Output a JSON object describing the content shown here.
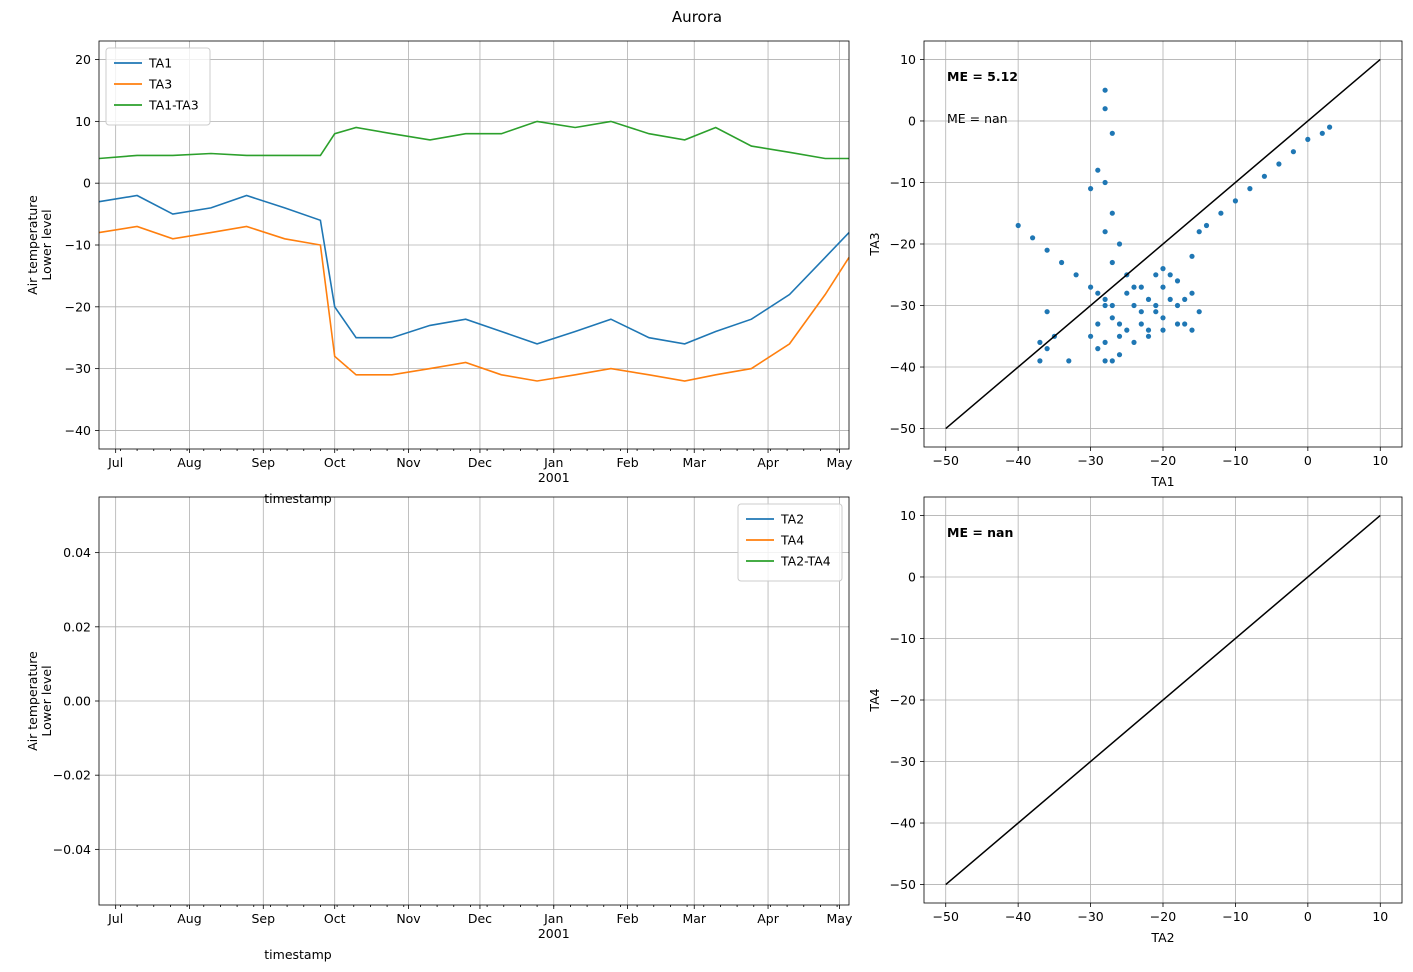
{
  "figure": {
    "title": "Aurora"
  },
  "colors": {
    "blue": "#1f77b4",
    "orange": "#ff7f0e",
    "green": "#2ca02c",
    "black": "#000000",
    "grid": "#b0b0b0"
  },
  "chart_data": [
    {
      "id": "ts_upper",
      "type": "line",
      "xlabel": "timestamp",
      "ylabel": [
        "Air temperature",
        "Lower level"
      ],
      "xlim": [
        "2000-06-24",
        "2001-05-05"
      ],
      "ylim": [
        -43,
        23
      ],
      "yticks": [
        20,
        10,
        0,
        -10,
        -20,
        -30,
        -40
      ],
      "xticks": [
        {
          "date": "2000-07-01",
          "label": "Jul"
        },
        {
          "date": "2000-08-01",
          "label": "Aug"
        },
        {
          "date": "2000-09-01",
          "label": "Sep"
        },
        {
          "date": "2000-10-01",
          "label": "Oct"
        },
        {
          "date": "2000-11-01",
          "label": "Nov"
        },
        {
          "date": "2000-12-01",
          "label": "Dec"
        },
        {
          "date": "2001-01-01",
          "label": "Jan",
          "sublabel": "2001"
        },
        {
          "date": "2001-02-01",
          "label": "Feb"
        },
        {
          "date": "2001-03-01",
          "label": "Mar"
        },
        {
          "date": "2001-04-01",
          "label": "Apr"
        },
        {
          "date": "2001-05-01",
          "label": "May"
        }
      ],
      "grid": true,
      "legend": "upper left",
      "series": [
        {
          "name": "TA1",
          "color": "#1f77b4",
          "x": [
            "2000-06-24",
            "2000-07-10",
            "2000-07-25",
            "2000-08-10",
            "2000-08-25",
            "2000-09-10",
            "2000-09-25",
            "2000-10-01",
            "2000-10-10",
            "2000-10-25",
            "2000-11-10",
            "2000-11-25",
            "2000-12-10",
            "2000-12-25",
            "2001-01-10",
            "2001-01-25",
            "2001-02-10",
            "2001-02-25",
            "2001-03-10",
            "2001-03-25",
            "2001-04-10",
            "2001-04-25",
            "2001-05-05"
          ],
          "values": [
            -3,
            -2,
            -5,
            -4,
            -2,
            -4,
            -6,
            -20,
            -25,
            -25,
            -23,
            -22,
            -24,
            -26,
            -24,
            -22,
            -25,
            -26,
            -24,
            -22,
            -18,
            -12,
            -8
          ]
        },
        {
          "name": "TA3",
          "color": "#ff7f0e",
          "x": [
            "2000-06-24",
            "2000-07-10",
            "2000-07-25",
            "2000-08-10",
            "2000-08-25",
            "2000-09-10",
            "2000-09-25",
            "2000-10-01",
            "2000-10-10",
            "2000-10-25",
            "2000-11-10",
            "2000-11-25",
            "2000-12-10",
            "2000-12-25",
            "2001-01-10",
            "2001-01-25",
            "2001-02-10",
            "2001-02-25",
            "2001-03-10",
            "2001-03-25",
            "2001-04-10",
            "2001-04-25",
            "2001-05-05"
          ],
          "values": [
            -8,
            -7,
            -9,
            -8,
            -7,
            -9,
            -10,
            -28,
            -31,
            -31,
            -30,
            -29,
            -31,
            -32,
            -31,
            -30,
            -31,
            -32,
            -31,
            -30,
            -26,
            -18,
            -12
          ]
        },
        {
          "name": "TA1-TA3",
          "color": "#2ca02c",
          "x": [
            "2000-06-24",
            "2000-07-10",
            "2000-07-25",
            "2000-08-10",
            "2000-08-25",
            "2000-09-10",
            "2000-09-25",
            "2000-10-01",
            "2000-10-10",
            "2000-10-25",
            "2000-11-10",
            "2000-11-25",
            "2000-12-10",
            "2000-12-25",
            "2001-01-10",
            "2001-01-25",
            "2001-02-10",
            "2001-02-25",
            "2001-03-10",
            "2001-03-25",
            "2001-04-10",
            "2001-04-25",
            "2001-05-05"
          ],
          "values": [
            4,
            4.5,
            4.5,
            4.8,
            4.5,
            4.5,
            4.5,
            8,
            9,
            8,
            7,
            8,
            8,
            10,
            9,
            10,
            8,
            7,
            9,
            6,
            5,
            4,
            4
          ]
        }
      ]
    },
    {
      "id": "scatter_upper",
      "type": "scatter",
      "xlabel": "TA1",
      "ylabel": "TA3",
      "xlim": [
        -53,
        13
      ],
      "ylim": [
        -53,
        13
      ],
      "xticks": [
        -50,
        -40,
        -30,
        -20,
        -10,
        0,
        10
      ],
      "yticks": [
        10,
        0,
        -10,
        -20,
        -30,
        -40,
        -50
      ],
      "grid": true,
      "annotations": [
        {
          "text": "ME = 5.12",
          "bold": true
        },
        {
          "text": "ME = nan",
          "bold": false
        }
      ],
      "reference_line": {
        "x": [
          -50,
          10
        ],
        "y": [
          -50,
          10
        ],
        "color": "#000000"
      },
      "points_color": "#1f77b4",
      "points": [
        [
          -40,
          -17
        ],
        [
          -38,
          -19
        ],
        [
          -36,
          -21
        ],
        [
          -34,
          -23
        ],
        [
          -32,
          -25
        ],
        [
          -30,
          -27
        ],
        [
          -29,
          -28
        ],
        [
          -28,
          -29
        ],
        [
          -27,
          -30
        ],
        [
          -36,
          -31
        ],
        [
          -35,
          -35
        ],
        [
          -36,
          -37
        ],
        [
          -28,
          -30
        ],
        [
          -27,
          -32
        ],
        [
          -26,
          -35
        ],
        [
          -26,
          -38
        ],
        [
          -28,
          -36
        ],
        [
          -28,
          -39
        ],
        [
          -27,
          -39
        ],
        [
          -26,
          -33
        ],
        [
          -25,
          -28
        ],
        [
          -24,
          -30
        ],
        [
          -23,
          -33
        ],
        [
          -22,
          -35
        ],
        [
          -21,
          -30
        ],
        [
          -20,
          -27
        ],
        [
          -20,
          -32
        ],
        [
          -19,
          -25
        ],
        [
          -18,
          -30
        ],
        [
          -17,
          -33
        ],
        [
          -16,
          -28
        ],
        [
          -16,
          -22
        ],
        [
          -15,
          -18
        ],
        [
          -14,
          -17
        ],
        [
          -12,
          -15
        ],
        [
          -10,
          -13
        ],
        [
          -8,
          -11
        ],
        [
          -6,
          -9
        ],
        [
          -4,
          -7
        ],
        [
          -2,
          -5
        ],
        [
          0,
          -3
        ],
        [
          2,
          -2
        ],
        [
          3,
          -1
        ],
        [
          -27,
          -2
        ],
        [
          -28,
          -10
        ],
        [
          -27,
          -15
        ],
        [
          -26,
          -20
        ],
        [
          -27,
          -23
        ],
        [
          -28,
          2
        ],
        [
          -28,
          5
        ],
        [
          -29,
          -8
        ],
        [
          -30,
          -11
        ],
        [
          -28,
          -18
        ],
        [
          -25,
          -25
        ],
        [
          -24,
          -27
        ],
        [
          -22,
          -29
        ],
        [
          -21,
          -31
        ],
        [
          -19,
          -29
        ],
        [
          -18,
          -26
        ],
        [
          -17,
          -29
        ],
        [
          -22,
          -34
        ],
        [
          -23,
          -31
        ],
        [
          -25,
          -34
        ],
        [
          -24,
          -36
        ],
        [
          -29,
          -33
        ],
        [
          -30,
          -35
        ],
        [
          -29,
          -37
        ],
        [
          -37,
          -36
        ],
        [
          -37,
          -39
        ],
        [
          -33,
          -39
        ],
        [
          -20,
          -34
        ],
        [
          -18,
          -33
        ],
        [
          -16,
          -34
        ],
        [
          -15,
          -31
        ],
        [
          -23,
          -27
        ],
        [
          -21,
          -25
        ],
        [
          -20,
          -24
        ]
      ]
    },
    {
      "id": "ts_lower",
      "type": "line",
      "xlabel": "timestamp",
      "ylabel": [
        "Air temperature",
        "Lower level"
      ],
      "xlim": [
        "2000-06-24",
        "2001-05-05"
      ],
      "ylim": [
        -0.055,
        0.055
      ],
      "yticks": [
        "0.04",
        "0.02",
        "0.00",
        "−0.02",
        "−0.04"
      ],
      "ytick_values": [
        0.04,
        0.02,
        0.0,
        -0.02,
        -0.04
      ],
      "xticks": [
        {
          "date": "2000-07-01",
          "label": "Jul"
        },
        {
          "date": "2000-08-01",
          "label": "Aug"
        },
        {
          "date": "2000-09-01",
          "label": "Sep"
        },
        {
          "date": "2000-10-01",
          "label": "Oct"
        },
        {
          "date": "2000-11-01",
          "label": "Nov"
        },
        {
          "date": "2000-12-01",
          "label": "Dec"
        },
        {
          "date": "2001-01-01",
          "label": "Jan",
          "sublabel": "2001"
        },
        {
          "date": "2001-02-01",
          "label": "Feb"
        },
        {
          "date": "2001-03-01",
          "label": "Mar"
        },
        {
          "date": "2001-04-01",
          "label": "Apr"
        },
        {
          "date": "2001-05-01",
          "label": "May"
        }
      ],
      "grid": true,
      "legend": "upper right",
      "series": [
        {
          "name": "TA2",
          "color": "#1f77b4",
          "x": [],
          "values": []
        },
        {
          "name": "TA4",
          "color": "#ff7f0e",
          "x": [],
          "values": []
        },
        {
          "name": "TA2-TA4",
          "color": "#2ca02c",
          "x": [],
          "values": []
        }
      ]
    },
    {
      "id": "scatter_lower",
      "type": "scatter",
      "xlabel": "TA2",
      "ylabel": "TA4",
      "xlim": [
        -53,
        13
      ],
      "ylim": [
        -53,
        13
      ],
      "xticks": [
        -50,
        -40,
        -30,
        -20,
        -10,
        0,
        10
      ],
      "yticks": [
        10,
        0,
        -10,
        -20,
        -30,
        -40,
        -50
      ],
      "grid": true,
      "annotations": [
        {
          "text": "ME = nan",
          "bold": true
        }
      ],
      "reference_line": {
        "x": [
          -50,
          10
        ],
        "y": [
          -50,
          10
        ],
        "color": "#000000"
      },
      "points_color": "#1f77b4",
      "points": []
    }
  ]
}
